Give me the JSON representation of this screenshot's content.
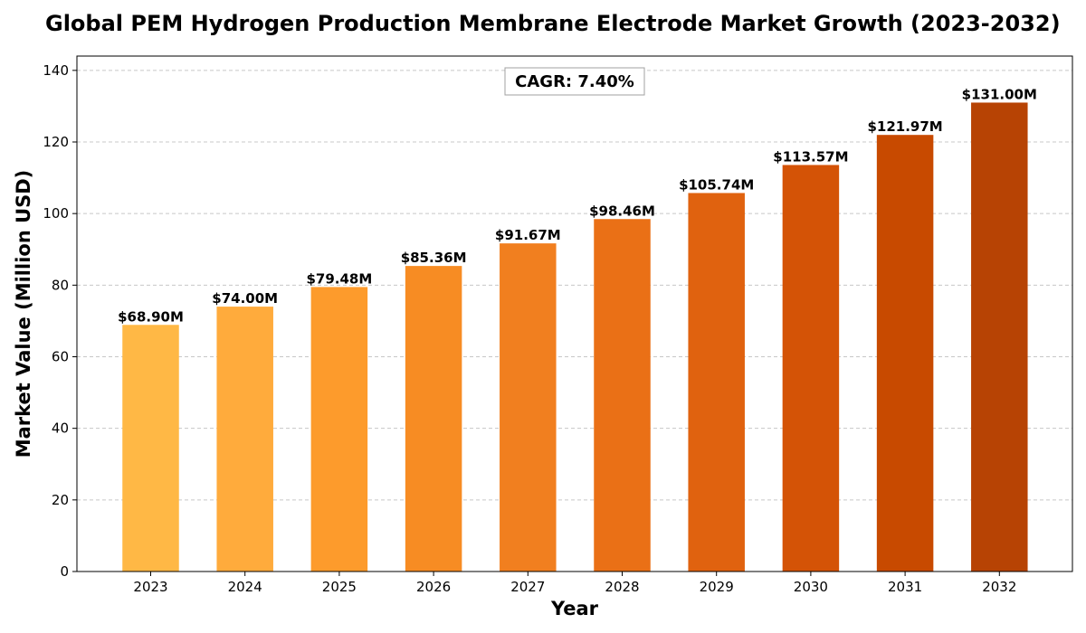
{
  "chart_data": {
    "type": "bar",
    "title": "Global PEM Hydrogen Production Membrane Electrode Market Growth (2023-2032)",
    "xlabel": "Year",
    "ylabel": "Market Value (Million USD)",
    "categories": [
      "2023",
      "2024",
      "2025",
      "2026",
      "2027",
      "2028",
      "2029",
      "2030",
      "2031",
      "2032"
    ],
    "values": [
      68.9,
      74.0,
      79.48,
      85.36,
      91.67,
      98.46,
      105.74,
      113.57,
      121.97,
      131.0
    ],
    "data_labels": [
      "$68.90M",
      "$74.00M",
      "$79.48M",
      "$85.36M",
      "$91.67M",
      "$98.46M",
      "$105.74M",
      "$113.57M",
      "$121.97M",
      "$131.00M"
    ],
    "colors": [
      "#ffb845",
      "#ffab3c",
      "#fd9b2c",
      "#f78c23",
      "#f17f1f",
      "#ea7016",
      "#e0620f",
      "#d45306",
      "#c84a00",
      "#b74304"
    ],
    "yticks": [
      0,
      20,
      40,
      60,
      80,
      100,
      120,
      140
    ],
    "ylim": [
      0,
      144
    ],
    "grid": true,
    "annotation": "CAGR: 7.40%"
  }
}
